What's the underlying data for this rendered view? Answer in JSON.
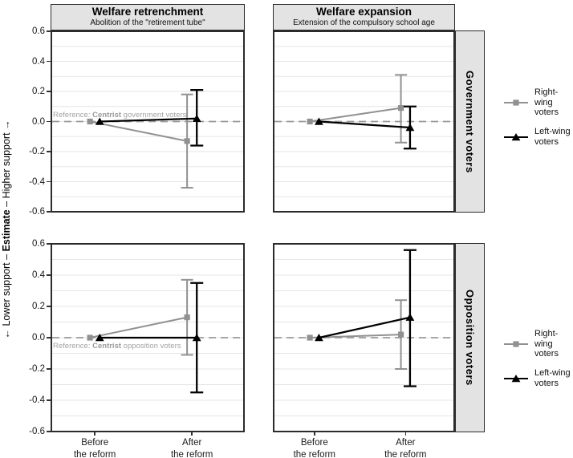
{
  "axes": {
    "y_title_left": "← Lower support  –  ",
    "y_title_emph": "Estimate",
    "y_title_right": "  –  Higher support →",
    "y_tick_labels": [
      "0.6",
      "0.4",
      "0.2",
      "0.0",
      "-0.2",
      "-0.4",
      "-0.6"
    ],
    "x_tick_labels": [
      [
        "Before",
        "the reform"
      ],
      [
        "After",
        "the reform"
      ]
    ]
  },
  "colors": {
    "right_wing": "#919191",
    "left_wing": "#000000",
    "reference_line": "#999999",
    "gridline": "#e6e6e6",
    "strip_bg": "#e3e3e3",
    "panel_border": "#2b2b2b",
    "note_text": "#a3a3a3"
  },
  "legend": {
    "items": [
      {
        "label_lines": [
          "Right-wing",
          "voters"
        ],
        "marker": "square",
        "color": "#919191"
      },
      {
        "label_lines": [
          "Left-wing",
          "voters"
        ],
        "marker": "triangle",
        "color": "#000000"
      }
    ]
  },
  "chart_data": {
    "type": "line",
    "subtype": "faceted point estimates with 95% confidence intervals",
    "x_categories": [
      "Before the reform",
      "After the reform"
    ],
    "y_ticks": [
      0.6,
      0.4,
      0.2,
      0.0,
      -0.2,
      -0.4,
      -0.6
    ],
    "ylim": [
      -0.605,
      0.605
    ],
    "reference_line_y": 0.0,
    "grid": "horizontal minor+major every 0.1",
    "legend_position": "right",
    "col_facets": [
      {
        "title": "Welfare retrenchment",
        "subtitle": "Abolition of the \"retirement tube\""
      },
      {
        "title": "Welfare expansion",
        "subtitle": "Extension of the compulsory school age"
      }
    ],
    "row_facets": [
      "Government voters",
      "Opposition voters"
    ],
    "series_names": [
      "Right-wing voters",
      "Left-wing voters"
    ],
    "panels": [
      {
        "row": "Government voters",
        "col": "Welfare retrenchment",
        "note": {
          "prefix": "Reference: ",
          "bold": "Centrist",
          "suffix": " government voters",
          "side": "above"
        },
        "series": [
          {
            "name": "Right-wing voters",
            "values": [
              {
                "x": "Before the reform",
                "estimate": 0.0
              },
              {
                "x": "After the reform",
                "estimate": -0.13,
                "ci_low": -0.44,
                "ci_high": 0.18
              }
            ]
          },
          {
            "name": "Left-wing voters",
            "values": [
              {
                "x": "Before the reform",
                "estimate": 0.0
              },
              {
                "x": "After the reform",
                "estimate": 0.02,
                "ci_low": -0.16,
                "ci_high": 0.21
              }
            ]
          }
        ]
      },
      {
        "row": "Government voters",
        "col": "Welfare expansion",
        "series": [
          {
            "name": "Right-wing voters",
            "values": [
              {
                "x": "Before the reform",
                "estimate": 0.0
              },
              {
                "x": "After the reform",
                "estimate": 0.09,
                "ci_low": -0.14,
                "ci_high": 0.31
              }
            ]
          },
          {
            "name": "Left-wing voters",
            "values": [
              {
                "x": "Before the reform",
                "estimate": 0.0
              },
              {
                "x": "After the reform",
                "estimate": -0.04,
                "ci_low": -0.18,
                "ci_high": 0.1
              }
            ]
          }
        ]
      },
      {
        "row": "Opposition voters",
        "col": "Welfare retrenchment",
        "note": {
          "prefix": "Reference: ",
          "bold": "Centrist",
          "suffix": " opposition voters",
          "side": "below"
        },
        "series": [
          {
            "name": "Right-wing voters",
            "values": [
              {
                "x": "Before the reform",
                "estimate": 0.0
              },
              {
                "x": "After the reform",
                "estimate": 0.13,
                "ci_low": -0.11,
                "ci_high": 0.37
              }
            ]
          },
          {
            "name": "Left-wing voters",
            "values": [
              {
                "x": "Before the reform",
                "estimate": 0.0
              },
              {
                "x": "After the reform",
                "estimate": 0.0,
                "ci_low": -0.35,
                "ci_high": 0.35
              }
            ]
          }
        ]
      },
      {
        "row": "Opposition voters",
        "col": "Welfare expansion",
        "series": [
          {
            "name": "Right-wing voters",
            "values": [
              {
                "x": "Before the reform",
                "estimate": 0.0
              },
              {
                "x": "After the reform",
                "estimate": 0.02,
                "ci_low": -0.2,
                "ci_high": 0.24
              }
            ]
          },
          {
            "name": "Left-wing voters",
            "values": [
              {
                "x": "Before the reform",
                "estimate": 0.0
              },
              {
                "x": "After the reform",
                "estimate": 0.13,
                "ci_low": -0.31,
                "ci_high": 0.56
              }
            ]
          }
        ]
      }
    ]
  }
}
